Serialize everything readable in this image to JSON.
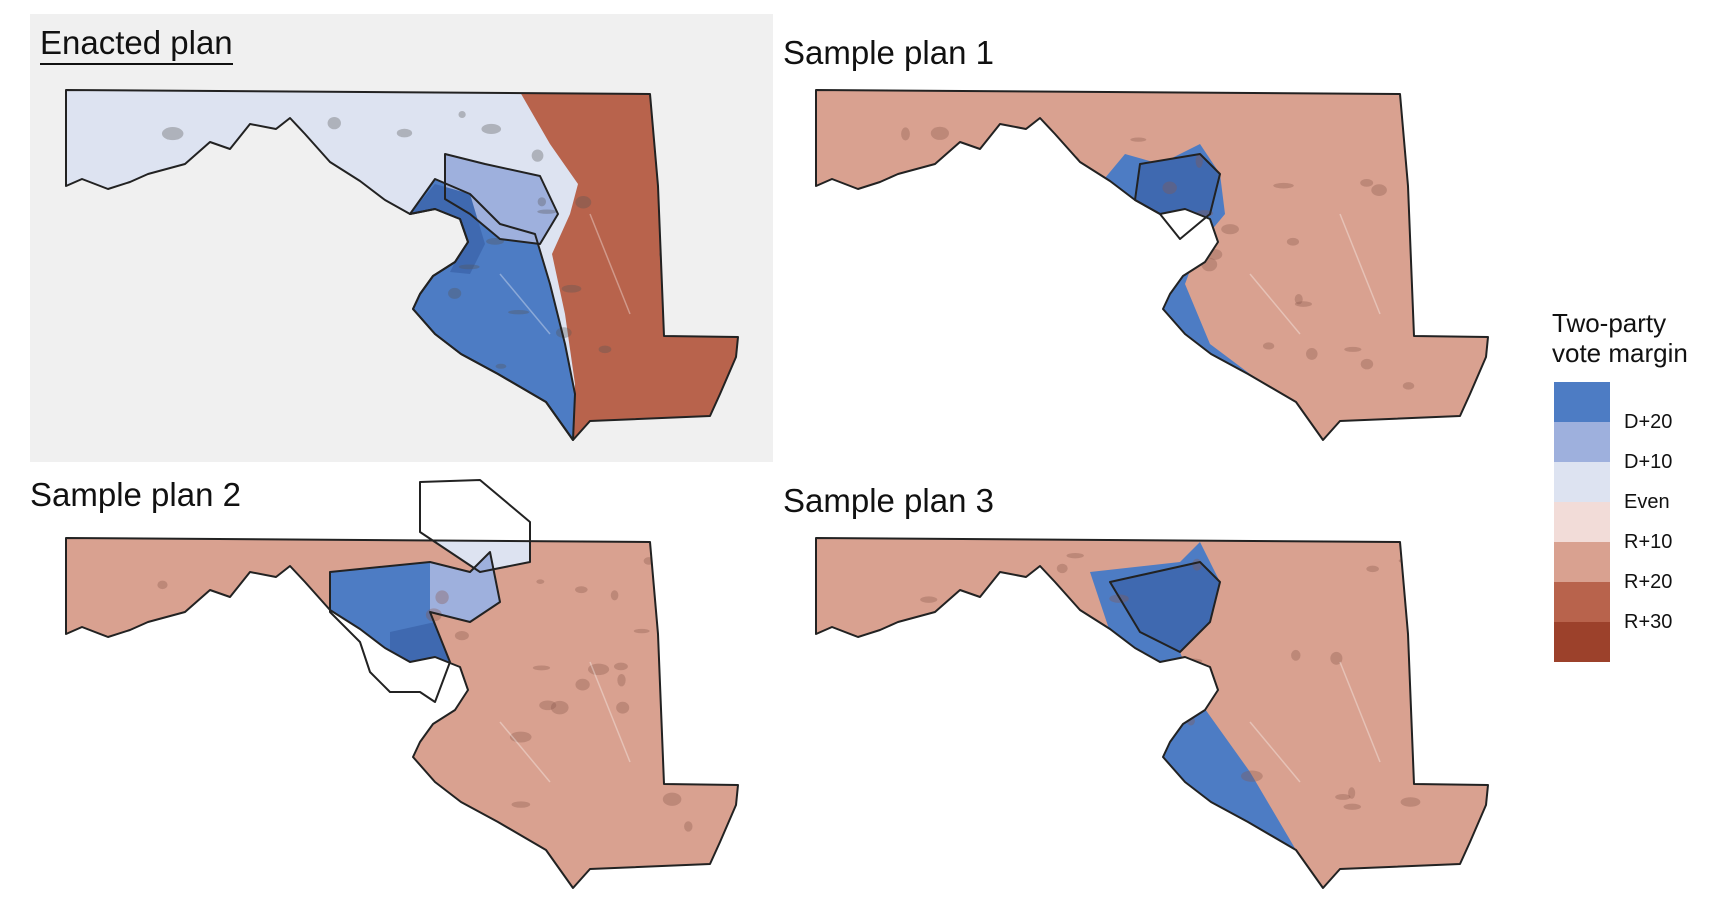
{
  "panels": [
    {
      "id": "enacted",
      "title": "Enacted plan"
    },
    {
      "id": "s1",
      "title": "Sample plan 1"
    },
    {
      "id": "s2",
      "title": "Sample plan 2"
    },
    {
      "id": "s3",
      "title": "Sample plan 3"
    }
  ],
  "legend": {
    "title_line1": "Two-party",
    "title_line2": "vote margin",
    "ticks": [
      "D+20",
      "D+10",
      "Even",
      "R+10",
      "R+20",
      "R+30"
    ],
    "colors": [
      "#4d7cc4",
      "#9eb0dd",
      "#dde3f1",
      "#f2dcd8",
      "#d9a190",
      "#b8634c",
      "#9c412b"
    ]
  },
  "colors": {
    "dem_strong": "#4d7cc4",
    "dem_dark": "#3f69b0",
    "dem_mid": "#9eb0dd",
    "dem_light": "#dde3f1",
    "rep_light": "#d9a190",
    "rep_mid": "#b8634c",
    "panel_bg": "#f0f0f0",
    "border": "#222222"
  }
}
